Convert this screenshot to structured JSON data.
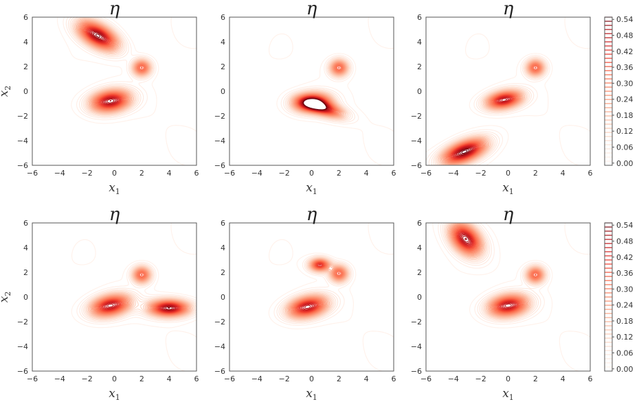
{
  "chart_data": [
    {
      "type": "contour",
      "title": "η",
      "xlabel": "x1",
      "ylabel": "x2",
      "xlim": [
        -6,
        6
      ],
      "ylim": [
        -6,
        6
      ],
      "xticks": [
        "−6",
        "−4",
        "−2",
        "0",
        "2",
        "4",
        "6"
      ],
      "yticks": [
        "−6",
        "−4",
        "−2",
        "0",
        "2",
        "4",
        "6"
      ],
      "modes": [
        {
          "x": -1.2,
          "y": 4.5,
          "sx": 1.0,
          "sy": 0.8,
          "rho": -0.55,
          "peak": 0.52
        },
        {
          "x": 2.0,
          "y": 1.9,
          "sx": 0.45,
          "sy": 0.45,
          "rho": 0.0,
          "peak": 0.34
        },
        {
          "x": -0.3,
          "y": -0.8,
          "sx": 1.0,
          "sy": 0.6,
          "rho": 0.2,
          "peak": 0.5
        }
      ]
    },
    {
      "type": "contour",
      "title": "η",
      "xlabel": "x1",
      "ylabel": "",
      "xlim": [
        -6,
        6
      ],
      "ylim": [
        -6,
        6
      ],
      "xticks": [
        "−6",
        "−4",
        "−2",
        "0",
        "2",
        "4",
        "6"
      ],
      "yticks": [
        "−6",
        "−4",
        "−2",
        "0",
        "2",
        "4",
        "6"
      ],
      "modes": [
        {
          "x": 2.0,
          "y": 1.9,
          "sx": 0.45,
          "sy": 0.45,
          "rho": 0.0,
          "peak": 0.34
        },
        {
          "x": 0.0,
          "y": -0.9,
          "sx": 0.9,
          "sy": 0.5,
          "rho": 0.1,
          "peak": 0.5
        },
        {
          "x": 0.9,
          "y": -1.4,
          "sx": 1.0,
          "sy": 0.5,
          "rho": -0.6,
          "peak": 0.4
        }
      ]
    },
    {
      "type": "contour",
      "title": "η",
      "xlabel": "x1",
      "ylabel": "",
      "xlim": [
        -6,
        6
      ],
      "ylim": [
        -6,
        6
      ],
      "xticks": [
        "−6",
        "−4",
        "−2",
        "0",
        "2",
        "4",
        "6"
      ],
      "yticks": [
        "−6",
        "−4",
        "−2",
        "0",
        "2",
        "4",
        "6"
      ],
      "modes": [
        {
          "x": 2.0,
          "y": 1.9,
          "sx": 0.45,
          "sy": 0.45,
          "rho": 0.0,
          "peak": 0.34
        },
        {
          "x": -0.3,
          "y": -0.7,
          "sx": 0.9,
          "sy": 0.5,
          "rho": 0.3,
          "peak": 0.48
        },
        {
          "x": -3.2,
          "y": -4.9,
          "sx": 1.1,
          "sy": 0.7,
          "rho": 0.55,
          "peak": 0.54
        }
      ]
    },
    {
      "type": "contour",
      "title": "η",
      "xlabel": "x1",
      "ylabel": "x2",
      "xlim": [
        -6,
        6
      ],
      "ylim": [
        -6,
        6
      ],
      "xticks": [
        "−6",
        "−4",
        "−2",
        "0",
        "2",
        "4",
        "6"
      ],
      "yticks": [
        "−6",
        "−4",
        "−2",
        "0",
        "2",
        "4",
        "6"
      ],
      "modes": [
        {
          "x": 2.0,
          "y": 1.8,
          "sx": 0.45,
          "sy": 0.45,
          "rho": 0.0,
          "peak": 0.34
        },
        {
          "x": -0.3,
          "y": -0.7,
          "sx": 1.0,
          "sy": 0.6,
          "rho": 0.3,
          "peak": 0.48
        },
        {
          "x": 4.0,
          "y": -0.9,
          "sx": 1.0,
          "sy": 0.45,
          "rho": 0.0,
          "peak": 0.52
        }
      ]
    },
    {
      "type": "contour",
      "title": "η",
      "xlabel": "x1",
      "ylabel": "",
      "xlim": [
        -6,
        6
      ],
      "ylim": [
        -6,
        6
      ],
      "xticks": [
        "−6",
        "−4",
        "−2",
        "0",
        "2",
        "4",
        "6"
      ],
      "yticks": [
        "−6",
        "−4",
        "−2",
        "0",
        "2",
        "4",
        "6"
      ],
      "modes": [
        {
          "x": 0.6,
          "y": 2.6,
          "sx": 0.5,
          "sy": 0.35,
          "rho": 0.0,
          "peak": 0.42
        },
        {
          "x": 2.0,
          "y": 1.9,
          "sx": 0.45,
          "sy": 0.45,
          "rho": 0.0,
          "peak": 0.34
        },
        {
          "x": -0.3,
          "y": -0.8,
          "sx": 1.0,
          "sy": 0.6,
          "rho": 0.3,
          "peak": 0.48
        }
      ]
    },
    {
      "type": "contour",
      "title": "η",
      "xlabel": "x1",
      "ylabel": "",
      "xlim": [
        -6,
        6
      ],
      "ylim": [
        -6,
        6
      ],
      "xticks": [
        "−6",
        "−4",
        "−2",
        "0",
        "2",
        "4",
        "6"
      ],
      "yticks": [
        "−6",
        "−4",
        "−2",
        "0",
        "2",
        "4",
        "6"
      ],
      "modes": [
        {
          "x": -3.1,
          "y": 4.7,
          "sx": 0.8,
          "sy": 0.9,
          "rho": -0.4,
          "peak": 0.5
        },
        {
          "x": 2.0,
          "y": 1.8,
          "sx": 0.45,
          "sy": 0.45,
          "rho": 0.0,
          "peak": 0.34
        },
        {
          "x": 0.0,
          "y": -0.7,
          "sx": 1.0,
          "sy": 0.6,
          "rho": 0.2,
          "peak": 0.48
        }
      ]
    }
  ],
  "colorbar": {
    "ticks": [
      "0.00",
      "0.06",
      "0.12",
      "0.18",
      "0.24",
      "0.30",
      "0.36",
      "0.42",
      "0.48",
      "0.54"
    ],
    "min": 0.0,
    "max": 0.54,
    "levels": 36,
    "colormap": "Reds"
  }
}
